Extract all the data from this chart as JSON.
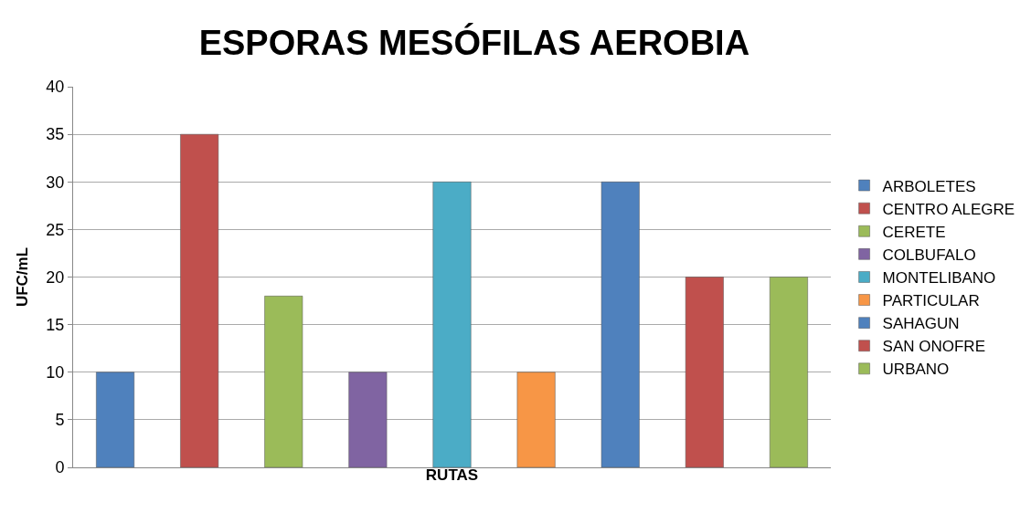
{
  "chart_data": {
    "type": "bar",
    "title": "ESPORAS MESÓFILAS AEROBIA",
    "xlabel": "RUTAS",
    "ylabel": "UFC/mL",
    "categories": [
      null,
      null,
      null,
      null,
      null,
      null,
      null,
      null,
      null
    ],
    "series": [
      {
        "name": "ARBOLETES",
        "color": "#4f81bd",
        "values": [
          10,
          null,
          null,
          null,
          null,
          null,
          null,
          null,
          null
        ]
      },
      {
        "name": "CENTRO ALEGRE",
        "color": "#c0504d",
        "values": [
          null,
          35,
          null,
          null,
          null,
          null,
          null,
          null,
          null
        ]
      },
      {
        "name": "CERETE",
        "color": "#9bbb59",
        "values": [
          null,
          null,
          18,
          null,
          null,
          null,
          null,
          null,
          null
        ]
      },
      {
        "name": "COLBUFALO",
        "color": "#8064a2",
        "values": [
          null,
          null,
          null,
          10,
          null,
          null,
          null,
          null,
          null
        ]
      },
      {
        "name": "MONTELIBANO",
        "color": "#4bacc6",
        "values": [
          null,
          null,
          null,
          null,
          30,
          null,
          null,
          null,
          null
        ]
      },
      {
        "name": "PARTICULAR",
        "color": "#f79646",
        "values": [
          null,
          null,
          null,
          null,
          null,
          10,
          null,
          null,
          null
        ]
      },
      {
        "name": "SAHAGUN",
        "color": "#4f81bd",
        "values": [
          null,
          null,
          null,
          null,
          null,
          null,
          30,
          null,
          null
        ]
      },
      {
        "name": "SAN ONOFRE",
        "color": "#c0504d",
        "values": [
          null,
          null,
          null,
          null,
          null,
          null,
          null,
          20,
          null
        ]
      },
      {
        "name": "URBANO",
        "color": "#9bbb59",
        "values": [
          null,
          null,
          null,
          null,
          null,
          null,
          null,
          null,
          20
        ]
      }
    ],
    "ylim": [
      0,
      40
    ],
    "yticks": [
      0,
      5,
      10,
      15,
      20,
      25,
      30,
      35,
      40
    ],
    "grid": "y",
    "legend": "right",
    "tick_labels": "y"
  }
}
